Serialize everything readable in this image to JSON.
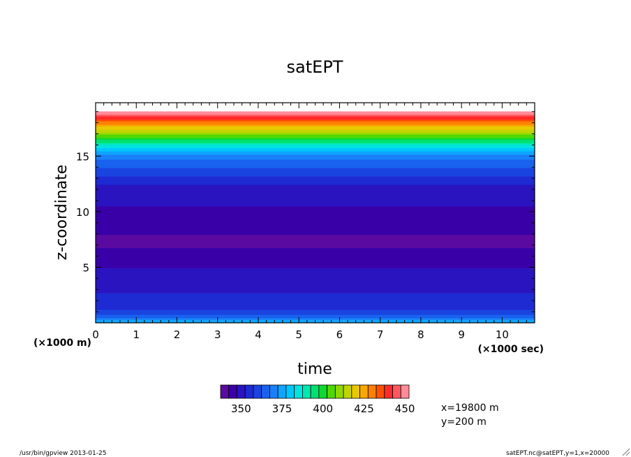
{
  "chart_data": {
    "type": "heatmap",
    "title": "satEPT",
    "xlabel": "time",
    "ylabel": "z-coordinate",
    "x_unit_label": "(×1000 sec)",
    "y_unit_label": "(×1000 m)",
    "xlim": [
      0,
      10.8
    ],
    "ylim": [
      0,
      19.8
    ],
    "x_ticks": [
      0,
      1,
      2,
      3,
      4,
      5,
      6,
      7,
      8,
      9,
      10
    ],
    "y_ticks": [
      5,
      10,
      15
    ],
    "grid": false,
    "colorbar": {
      "ticks": [
        350,
        375,
        400,
        425,
        450
      ],
      "colors": [
        "#5a0aa0",
        "#3a00a8",
        "#2a14c0",
        "#1e2ad2",
        "#1a44e0",
        "#1862ee",
        "#1a80f8",
        "#10a4ff",
        "#00c8ff",
        "#00e4e0",
        "#00e8b0",
        "#00e070",
        "#10d830",
        "#50d800",
        "#90d800",
        "#c0d400",
        "#e8c800",
        "#f8a800",
        "#ff8000",
        "#ff5000",
        "#ff2a2a",
        "#ff5860",
        "#ff8c98"
      ]
    },
    "profile": [
      {
        "z": 0.1,
        "v": 372
      },
      {
        "z": 0.5,
        "v": 362
      },
      {
        "z": 1.0,
        "v": 355
      },
      {
        "z": 1.5,
        "v": 350
      },
      {
        "z": 2.5,
        "v": 348
      },
      {
        "z": 3.5,
        "v": 345
      },
      {
        "z": 4.5,
        "v": 344
      },
      {
        "z": 5.5,
        "v": 340
      },
      {
        "z": 7.0,
        "v": 337
      },
      {
        "z": 9.0,
        "v": 338
      },
      {
        "z": 10.0,
        "v": 341
      },
      {
        "z": 11.0,
        "v": 344
      },
      {
        "z": 12.3,
        "v": 346
      },
      {
        "z": 13.0,
        "v": 351
      },
      {
        "z": 14.0,
        "v": 358
      },
      {
        "z": 15.0,
        "v": 365
      },
      {
        "z": 16.0,
        "v": 382
      },
      {
        "z": 17.0,
        "v": 405
      },
      {
        "z": 17.8,
        "v": 420
      },
      {
        "z": 18.5,
        "v": 436
      },
      {
        "z": 19.0,
        "v": 448
      }
    ],
    "annotations": [
      "x=19800 m",
      "y=200 m"
    ]
  },
  "footer": {
    "left": "/usr/bin/gpview  2013-01-25",
    "right": "satEPT.nc@satEPT,y=1,x=20000"
  }
}
